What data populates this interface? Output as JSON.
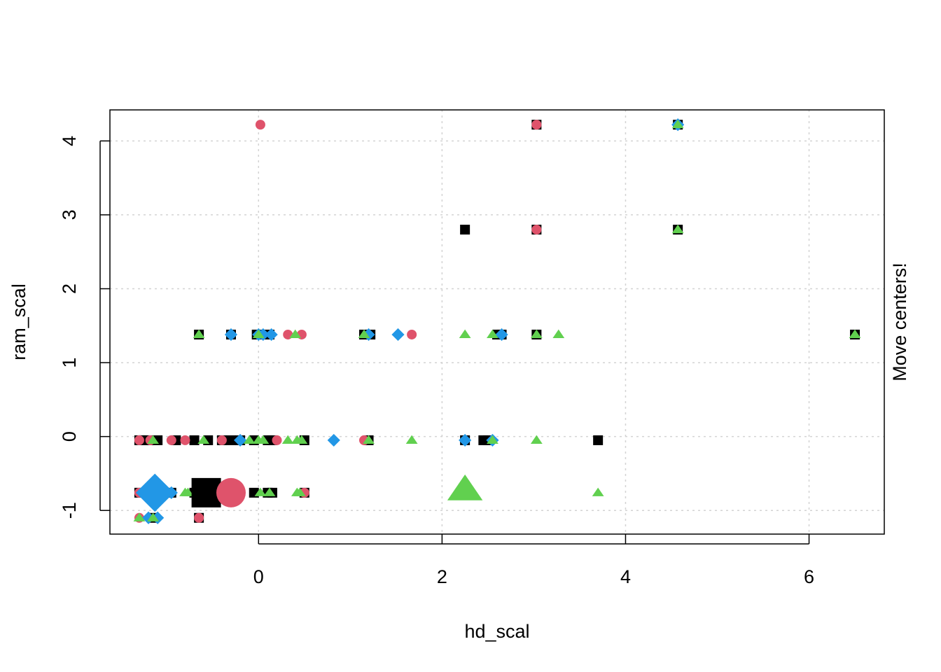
{
  "chart_data": {
    "type": "scatter",
    "title": "",
    "xlabel": "hd_scal",
    "ylabel": "ram_scal",
    "side_label": "Move centers!",
    "xlim": [
      -1.62,
      6.82
    ],
    "ylim": [
      -1.32,
      4.42
    ],
    "x_ticks": [
      0,
      2,
      4,
      6
    ],
    "y_ticks": [
      -1,
      0,
      1,
      2,
      3,
      4
    ],
    "grid": true,
    "legend": "none",
    "colors": {
      "black": "#000000",
      "red": "#df536b",
      "blue": "#2297e6",
      "green": "#61d04f",
      "grid": "#d3d3d3"
    },
    "series": [
      {
        "color": "black",
        "shape": "square",
        "points": [
          [
            -1.3,
            -0.05
          ],
          [
            -1.25,
            -0.05
          ],
          [
            -1.2,
            -0.05
          ],
          [
            -1.1,
            -0.05
          ],
          [
            -0.9,
            -0.05
          ],
          [
            -0.7,
            -0.05
          ],
          [
            -0.55,
            -0.05
          ],
          [
            -0.4,
            -0.05
          ],
          [
            -0.3,
            -0.05
          ],
          [
            -0.2,
            -0.05
          ],
          [
            -0.05,
            -0.05
          ],
          [
            0.1,
            -0.05
          ],
          [
            0.15,
            -0.05
          ],
          [
            0.5,
            -0.05
          ],
          [
            1.2,
            -0.05
          ],
          [
            2.25,
            -0.05
          ],
          [
            2.45,
            -0.05
          ],
          [
            2.5,
            -0.05
          ],
          [
            3.7,
            -0.05
          ],
          [
            -1.3,
            -0.76
          ],
          [
            -0.95,
            -0.76
          ],
          [
            -0.7,
            -0.76
          ],
          [
            -0.05,
            -0.76
          ],
          [
            0.1,
            -0.76
          ],
          [
            0.15,
            -0.76
          ],
          [
            0.5,
            -0.76
          ],
          [
            -0.65,
            1.38
          ],
          [
            -0.3,
            1.38
          ],
          [
            -0.02,
            1.38
          ],
          [
            0.12,
            1.38
          ],
          [
            1.15,
            1.38
          ],
          [
            1.22,
            1.38
          ],
          [
            2.6,
            1.38
          ],
          [
            2.65,
            1.38
          ],
          [
            3.03,
            1.38
          ],
          [
            6.5,
            1.38
          ],
          [
            2.25,
            2.8
          ],
          [
            3.03,
            2.8
          ],
          [
            4.57,
            2.8
          ],
          [
            3.03,
            4.22
          ],
          [
            4.57,
            4.22
          ],
          [
            -1.15,
            -1.1
          ],
          [
            -0.65,
            -1.1
          ]
        ]
      },
      {
        "color": "red",
        "shape": "circle",
        "points": [
          [
            0.02,
            4.22
          ],
          [
            3.03,
            4.22
          ],
          [
            3.03,
            2.8
          ],
          [
            0.32,
            1.38
          ],
          [
            0.47,
            1.38
          ],
          [
            1.67,
            1.38
          ],
          [
            -1.3,
            -0.05
          ],
          [
            -1.18,
            -0.05
          ],
          [
            -0.95,
            -0.05
          ],
          [
            -0.8,
            -0.05
          ],
          [
            -0.4,
            -0.05
          ],
          [
            0.2,
            -0.05
          ],
          [
            1.15,
            -0.05
          ],
          [
            -1.3,
            -0.76
          ],
          [
            0.5,
            -0.76
          ],
          [
            -1.3,
            -1.1
          ],
          [
            -0.65,
            -1.1
          ]
        ]
      },
      {
        "color": "blue",
        "shape": "diamond",
        "points": [
          [
            4.57,
            4.22
          ],
          [
            -0.3,
            1.38
          ],
          [
            0.0,
            1.38
          ],
          [
            0.05,
            1.38
          ],
          [
            0.14,
            1.38
          ],
          [
            1.2,
            1.38
          ],
          [
            1.52,
            1.38
          ],
          [
            2.65,
            1.38
          ],
          [
            -0.2,
            -0.05
          ],
          [
            0.82,
            -0.05
          ],
          [
            2.25,
            -0.05
          ],
          [
            2.55,
            -0.05
          ],
          [
            -0.95,
            -0.76
          ],
          [
            -1.2,
            -1.1
          ],
          [
            -1.1,
            -1.1
          ]
        ]
      },
      {
        "color": "green",
        "shape": "triangle",
        "points": [
          [
            4.57,
            4.22
          ],
          [
            4.57,
            2.8
          ],
          [
            -0.65,
            1.38
          ],
          [
            0.0,
            1.38
          ],
          [
            0.4,
            1.38
          ],
          [
            1.15,
            1.38
          ],
          [
            2.25,
            1.38
          ],
          [
            2.55,
            1.38
          ],
          [
            3.03,
            1.38
          ],
          [
            3.27,
            1.38
          ],
          [
            6.5,
            1.38
          ],
          [
            -1.15,
            -0.05
          ],
          [
            -0.6,
            -0.05
          ],
          [
            -0.1,
            -0.05
          ],
          [
            0.0,
            -0.05
          ],
          [
            0.05,
            -0.05
          ],
          [
            0.32,
            -0.05
          ],
          [
            0.42,
            -0.05
          ],
          [
            0.47,
            -0.05
          ],
          [
            1.2,
            -0.05
          ],
          [
            1.67,
            -0.05
          ],
          [
            2.55,
            -0.05
          ],
          [
            3.03,
            -0.05
          ],
          [
            -0.8,
            -0.76
          ],
          [
            -0.77,
            -0.76
          ],
          [
            0.02,
            -0.76
          ],
          [
            0.12,
            -0.76
          ],
          [
            0.42,
            -0.76
          ],
          [
            0.45,
            -0.76
          ],
          [
            3.7,
            -0.76
          ],
          [
            -1.3,
            -1.1
          ],
          [
            -1.15,
            -1.1
          ]
        ]
      }
    ],
    "centers": [
      {
        "color": "blue",
        "shape": "diamond",
        "x": -1.13,
        "y": -0.76
      },
      {
        "color": "black",
        "shape": "square",
        "x": -0.57,
        "y": -0.76
      },
      {
        "color": "red",
        "shape": "circle",
        "x": -0.3,
        "y": -0.76
      },
      {
        "color": "green",
        "shape": "triangle",
        "x": 2.25,
        "y": -0.72
      }
    ]
  }
}
